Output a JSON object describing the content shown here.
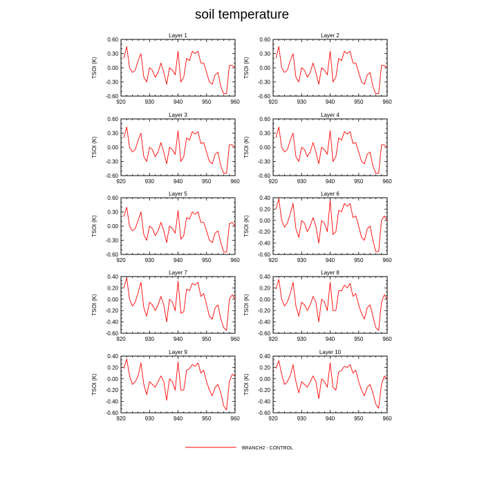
{
  "title": "soil temperature",
  "legend": {
    "label": "BRANCH2 - CONTROL",
    "color": "#ff0000"
  },
  "chart_data": {
    "type": "line",
    "title": "soil temperature",
    "layout": "5 rows x 2 columns of panels",
    "legend_placement": "bottom-center",
    "x": [
      921,
      922,
      923,
      924,
      925,
      926,
      927,
      928,
      929,
      930,
      931,
      932,
      933,
      934,
      935,
      936,
      937,
      938,
      939,
      940,
      941,
      942,
      943,
      944,
      945,
      946,
      947,
      948,
      949,
      950,
      951,
      952,
      953,
      954,
      955,
      956,
      957,
      958,
      959,
      960
    ],
    "xlim": [
      920,
      960
    ],
    "xticks": [
      "920",
      "930",
      "940",
      "950",
      "960"
    ],
    "ylabel": "TSOI  (K)",
    "series_color": "#ff0000",
    "series_name": "BRANCH2 - CONTROL",
    "panels": [
      {
        "title": "Layer 1",
        "ylim": [
          -0.6,
          0.6
        ],
        "yticks": [
          "0.60",
          "0.30",
          "0.00",
          "-0.30",
          "-0.60"
        ],
        "values": [
          0.2,
          0.45,
          0.0,
          -0.1,
          -0.05,
          0.15,
          0.3,
          -0.2,
          -0.3,
          0.0,
          -0.05,
          -0.2,
          -0.1,
          0.1,
          -0.1,
          -0.35,
          0.0,
          -0.05,
          -0.15,
          0.35,
          -0.3,
          -0.2,
          0.2,
          0.15,
          0.35,
          0.3,
          0.35,
          0.1,
          0.1,
          -0.1,
          -0.3,
          -0.35,
          -0.15,
          -0.1,
          -0.4,
          -0.55,
          -0.55,
          0.05,
          0.05,
          0.0
        ]
      },
      {
        "title": "Layer 2",
        "ylim": [
          -0.6,
          0.6
        ],
        "yticks": [
          "0.60",
          "0.30",
          "0.00",
          "-0.30",
          "-0.60"
        ],
        "values": [
          0.2,
          0.45,
          0.0,
          -0.1,
          -0.05,
          0.15,
          0.3,
          -0.2,
          -0.3,
          0.0,
          -0.05,
          -0.2,
          -0.1,
          0.1,
          -0.1,
          -0.35,
          0.0,
          -0.05,
          -0.15,
          0.35,
          -0.3,
          -0.2,
          0.2,
          0.15,
          0.35,
          0.3,
          0.35,
          0.1,
          0.1,
          -0.1,
          -0.3,
          -0.35,
          -0.15,
          -0.1,
          -0.4,
          -0.55,
          -0.55,
          0.05,
          0.05,
          0.0
        ]
      },
      {
        "title": "Layer 3",
        "ylim": [
          -0.6,
          0.6
        ],
        "yticks": [
          "0.60",
          "0.30",
          "0.00",
          "-0.30",
          "-0.60"
        ],
        "values": [
          0.2,
          0.43,
          0.0,
          -0.1,
          -0.05,
          0.15,
          0.3,
          -0.2,
          -0.3,
          0.0,
          -0.05,
          -0.2,
          -0.1,
          0.1,
          -0.1,
          -0.35,
          0.0,
          -0.05,
          -0.15,
          0.35,
          -0.3,
          -0.2,
          0.2,
          0.15,
          0.33,
          0.28,
          0.33,
          0.08,
          0.1,
          -0.1,
          -0.3,
          -0.35,
          -0.15,
          -0.1,
          -0.4,
          -0.55,
          -0.55,
          0.05,
          0.05,
          0.0
        ]
      },
      {
        "title": "Layer 4",
        "ylim": [
          -0.6,
          0.6
        ],
        "yticks": [
          "0.60",
          "0.30",
          "0.00",
          "-0.30",
          "-0.60"
        ],
        "values": [
          0.2,
          0.43,
          0.0,
          -0.1,
          -0.05,
          0.15,
          0.3,
          -0.2,
          -0.3,
          0.0,
          -0.05,
          -0.2,
          -0.1,
          0.1,
          -0.1,
          -0.35,
          0.0,
          -0.05,
          -0.15,
          0.35,
          -0.3,
          -0.2,
          0.2,
          0.15,
          0.33,
          0.28,
          0.33,
          0.08,
          0.1,
          -0.1,
          -0.3,
          -0.35,
          -0.15,
          -0.1,
          -0.4,
          -0.55,
          -0.55,
          0.05,
          0.05,
          0.0
        ]
      },
      {
        "title": "Layer 5",
        "ylim": [
          -0.6,
          0.6
        ],
        "yticks": [
          "0.60",
          "0.30",
          "0.00",
          "-0.30",
          "-0.60"
        ],
        "values": [
          0.2,
          0.4,
          0.0,
          -0.1,
          -0.05,
          0.12,
          0.3,
          -0.18,
          -0.3,
          0.0,
          -0.05,
          -0.2,
          -0.1,
          0.08,
          -0.1,
          -0.35,
          0.0,
          -0.05,
          -0.15,
          0.33,
          -0.28,
          -0.2,
          0.18,
          0.15,
          0.3,
          0.25,
          0.3,
          0.08,
          0.08,
          -0.1,
          -0.3,
          -0.35,
          -0.15,
          -0.1,
          -0.35,
          -0.55,
          -0.55,
          0.05,
          0.08,
          0.0
        ]
      },
      {
        "title": "Layer 6",
        "ylim": [
          -0.6,
          0.4
        ],
        "yticks": [
          "0.40",
          "0.20",
          "0.00",
          "-0.20",
          "-0.40",
          "-0.60"
        ],
        "values": [
          0.2,
          0.38,
          0.0,
          -0.12,
          -0.05,
          0.12,
          0.3,
          -0.15,
          -0.3,
          0.0,
          -0.05,
          -0.2,
          -0.1,
          0.05,
          -0.1,
          -0.4,
          0.0,
          -0.05,
          -0.2,
          0.35,
          -0.25,
          -0.2,
          0.18,
          0.15,
          0.3,
          0.25,
          0.3,
          0.05,
          0.08,
          -0.1,
          -0.3,
          -0.35,
          -0.15,
          -0.1,
          -0.35,
          -0.55,
          -0.55,
          0.0,
          0.08,
          0.0
        ]
      },
      {
        "title": "Layer 7",
        "ylim": [
          -0.6,
          0.4
        ],
        "yticks": [
          "0.40",
          "0.20",
          "0.00",
          "-0.20",
          "-0.40",
          "-0.60"
        ],
        "values": [
          0.2,
          0.38,
          0.0,
          -0.12,
          -0.05,
          0.12,
          0.3,
          -0.15,
          -0.3,
          -0.05,
          -0.1,
          -0.2,
          -0.1,
          0.05,
          -0.1,
          -0.4,
          0.0,
          -0.05,
          -0.2,
          0.32,
          -0.25,
          -0.22,
          0.18,
          0.15,
          0.28,
          0.25,
          0.3,
          0.05,
          0.1,
          -0.1,
          -0.3,
          -0.35,
          -0.15,
          -0.1,
          -0.35,
          -0.5,
          -0.55,
          0.0,
          0.08,
          0.0
        ]
      },
      {
        "title": "Layer 8",
        "ylim": [
          -0.6,
          0.4
        ],
        "yticks": [
          "0.40",
          "0.20",
          "0.00",
          "-0.20",
          "-0.40",
          "-0.60"
        ],
        "values": [
          0.18,
          0.35,
          0.0,
          -0.12,
          -0.05,
          0.1,
          0.3,
          -0.12,
          -0.3,
          -0.05,
          -0.1,
          -0.2,
          -0.1,
          0.05,
          -0.05,
          -0.4,
          0.0,
          -0.05,
          -0.2,
          0.3,
          -0.2,
          -0.2,
          0.15,
          0.15,
          0.25,
          0.2,
          0.28,
          0.05,
          0.1,
          -0.1,
          -0.25,
          -0.35,
          -0.15,
          -0.1,
          -0.3,
          -0.5,
          -0.55,
          -0.05,
          0.08,
          0.0
        ]
      },
      {
        "title": "Layer 9",
        "ylim": [
          -0.6,
          0.4
        ],
        "yticks": [
          "0.40",
          "0.20",
          "0.00",
          "-0.20",
          "-0.40",
          "-0.60"
        ],
        "values": [
          0.18,
          0.35,
          0.05,
          -0.1,
          -0.05,
          0.05,
          0.28,
          -0.1,
          -0.28,
          -0.05,
          -0.1,
          -0.15,
          -0.05,
          0.05,
          -0.05,
          -0.38,
          0.0,
          -0.05,
          -0.2,
          0.3,
          -0.2,
          -0.2,
          0.15,
          0.18,
          0.25,
          0.22,
          0.28,
          0.1,
          0.15,
          -0.05,
          -0.2,
          -0.3,
          -0.15,
          -0.1,
          -0.25,
          -0.48,
          -0.55,
          -0.05,
          0.08,
          0.05
        ]
      },
      {
        "title": "Layer 10",
        "ylim": [
          -0.6,
          0.4
        ],
        "yticks": [
          "0.40",
          "0.20",
          "0.00",
          "-0.20",
          "-0.40",
          "-0.60"
        ],
        "values": [
          0.18,
          0.32,
          0.08,
          -0.1,
          -0.05,
          0.05,
          0.25,
          -0.05,
          -0.25,
          -0.05,
          -0.1,
          -0.15,
          -0.05,
          0.05,
          -0.05,
          -0.35,
          0.0,
          -0.05,
          -0.15,
          0.28,
          -0.15,
          -0.2,
          0.12,
          0.15,
          0.22,
          0.2,
          0.25,
          0.1,
          0.15,
          -0.05,
          -0.2,
          -0.3,
          -0.15,
          -0.1,
          -0.25,
          -0.45,
          -0.52,
          -0.1,
          0.05,
          0.0
        ]
      }
    ]
  }
}
